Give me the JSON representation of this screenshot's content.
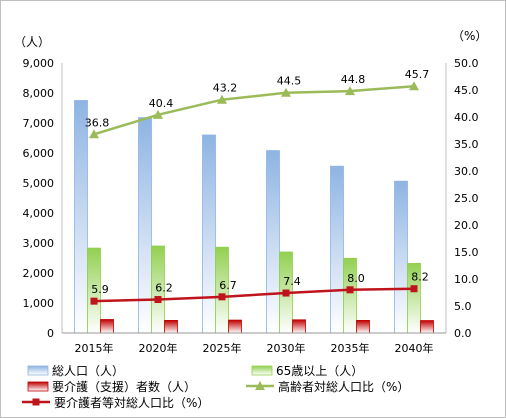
{
  "chart_data": {
    "type": "bar",
    "categories": [
      "2015年",
      "2020年",
      "2025年",
      "2030年",
      "2035年",
      "2040年"
    ],
    "left_axis": {
      "unit_label": "（人）",
      "ylim": [
        0,
        9000
      ],
      "ticks": [
        "0",
        "1,000",
        "2,000",
        "3,000",
        "4,000",
        "5,000",
        "6,000",
        "7,000",
        "8,000",
        "9,000"
      ]
    },
    "right_axis": {
      "unit_label": "（%）",
      "ylim": [
        0,
        50
      ],
      "ticks": [
        "0.0",
        "5.0",
        "10.0",
        "15.0",
        "20.0",
        "25.0",
        "30.0",
        "35.0",
        "40.0",
        "45.0",
        "50.0"
      ]
    },
    "grid": false,
    "legend_position": "bottom",
    "series": [
      {
        "name": "総人口（人）",
        "kind": "bar",
        "axis": "left",
        "color": "#8eb4e3",
        "values": [
          7750,
          7180,
          6600,
          6080,
          5560,
          5060
        ]
      },
      {
        "name": "65歳以上（人）",
        "kind": "bar",
        "axis": "left",
        "color": "#92d050",
        "values": [
          2830,
          2900,
          2860,
          2700,
          2490,
          2320
        ]
      },
      {
        "name": "要介護（支援）者数（人）",
        "kind": "bar",
        "axis": "left",
        "color": "#c00000",
        "values": [
          450,
          420,
          430,
          440,
          420,
          415
        ]
      },
      {
        "name": "高齢者対総人口比（%）",
        "kind": "line",
        "axis": "right",
        "color": "#9bbb59",
        "marker": "triangle",
        "values": [
          36.8,
          40.4,
          43.2,
          44.5,
          44.8,
          45.7
        ],
        "labels": [
          "36.8",
          "40.4",
          "43.2",
          "44.5",
          "44.8",
          "45.7"
        ]
      },
      {
        "name": "要介護者等対総人口比（%）",
        "kind": "line",
        "axis": "right",
        "color": "#c0141c",
        "marker": "square",
        "values": [
          5.9,
          6.2,
          6.7,
          7.4,
          8.0,
          8.2
        ],
        "labels": [
          "5.9",
          "6.2",
          "6.7",
          "7.4",
          "8.0",
          "8.2"
        ]
      }
    ]
  }
}
